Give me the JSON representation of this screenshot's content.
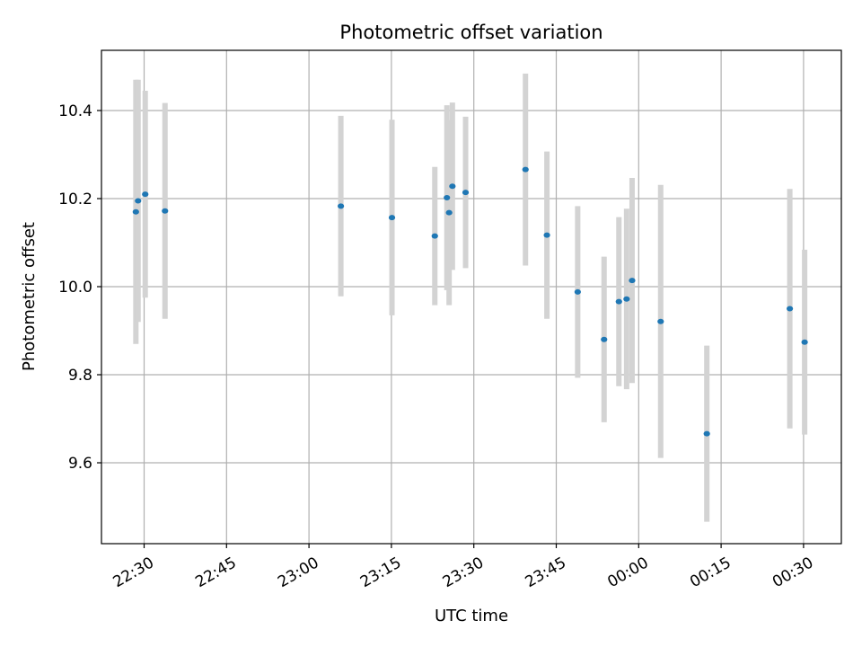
{
  "chart_data": {
    "type": "scatter",
    "title": "Photometric offset variation",
    "xlabel": "UTC time",
    "ylabel": "Photometric offset",
    "x_ticks": [
      "22:30",
      "22:45",
      "23:00",
      "23:15",
      "23:30",
      "23:45",
      "00:00",
      "00:15",
      "00:30"
    ],
    "y_ticks": [
      "9.6",
      "9.8",
      "10.0",
      "10.2",
      "10.4"
    ],
    "grid": true,
    "colors": {
      "points": "#1f77b4",
      "errorbars": "#d3d3d3",
      "grid": "#b0b0b0"
    },
    "series": [
      {
        "points": [
          {
            "t": "22:28:30",
            "y": 10.17,
            "err": 0.3
          },
          {
            "t": "22:28:54",
            "y": 10.195,
            "err": 0.275
          },
          {
            "t": "22:30:12",
            "y": 10.21,
            "err": 0.235
          },
          {
            "t": "22:33:48",
            "y": 10.172,
            "err": 0.245
          },
          {
            "t": "23:05:48",
            "y": 10.183,
            "err": 0.205
          },
          {
            "t": "23:15:06",
            "y": 10.157,
            "err": 0.222
          },
          {
            "t": "23:22:54",
            "y": 10.115,
            "err": 0.157
          },
          {
            "t": "23:25:06",
            "y": 10.202,
            "err": 0.21
          },
          {
            "t": "23:25:30",
            "y": 10.168,
            "err": 0.21
          },
          {
            "t": "23:26:06",
            "y": 10.228,
            "err": 0.19
          },
          {
            "t": "23:28:30",
            "y": 10.214,
            "err": 0.172
          },
          {
            "t": "23:39:24",
            "y": 10.266,
            "err": 0.218
          },
          {
            "t": "23:43:18",
            "y": 10.117,
            "err": 0.19
          },
          {
            "t": "23:48:54",
            "y": 9.988,
            "err": 0.195
          },
          {
            "t": "23:53:42",
            "y": 9.88,
            "err": 0.188
          },
          {
            "t": "23:56:24",
            "y": 9.966,
            "err": 0.192
          },
          {
            "t": "23:57:48",
            "y": 9.972,
            "err": 0.205
          },
          {
            "t": "23:58:48",
            "y": 10.014,
            "err": 0.233
          },
          {
            "t": "00:04:00",
            "y": 9.921,
            "err": 0.31
          },
          {
            "t": "00:12:24",
            "y": 9.666,
            "err": 0.2
          },
          {
            "t": "00:27:30",
            "y": 9.95,
            "err": 0.272
          },
          {
            "t": "00:30:12",
            "y": 9.874,
            "err": 0.21
          }
        ]
      }
    ]
  }
}
